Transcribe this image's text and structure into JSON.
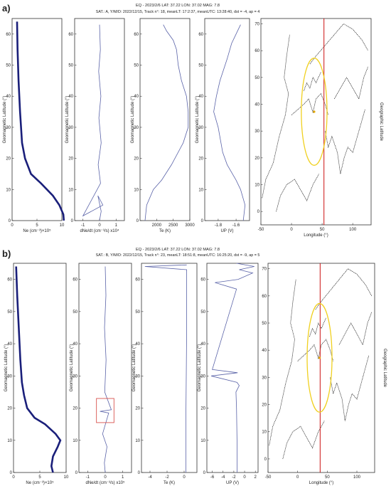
{
  "figure": {
    "colors": {
      "trace": "#1a1f7a",
      "thin_trace": "#5a63a8",
      "map_line": "#111111",
      "meridian": "#cc1111",
      "ellipse": "#f0d020",
      "box": "#d9534f"
    },
    "panels": [
      {
        "id": "a",
        "panel_label": "a)",
        "title": "EQ - 2023/2/6 LAT: 37.22 LON: 37.02 MAG: 7.8",
        "subtitle": "SAT.: A, Y/M/D: 2022/12/15, Track n°: 18, meanLT: 17:2:37, meanUTC: 13:28:40, dst = -4, ap = 4"
      },
      {
        "id": "b",
        "panel_label": "b)",
        "title": "EQ - 2023/2/6 LAT: 37.22 LON: 37.02 MAG: 7.8",
        "subtitle": "SAT.: B, Y/M/D: 2022/12/15, Track n°: 23, meanLT: 18:51:8, meanUTC: 16:25:20, dst = -9, ap = 5"
      }
    ],
    "ylabel_geomag": "Geomagnetic Latitude (°)",
    "ylabel_geo": "Geographic Latitude",
    "map_xlabel": "Longitude (°)"
  },
  "chart_data": [
    {
      "type": "line",
      "panel": "a",
      "subplot": "ne",
      "xlabel": "Ne (cm⁻³)×10⁵",
      "xlim": [
        0,
        10
      ],
      "ylim": [
        0,
        65
      ],
      "xticks": [
        0,
        5,
        10
      ],
      "yticks": [
        0,
        10,
        20,
        30,
        40,
        50,
        60
      ],
      "series": [
        {
          "x": [
            1,
            1.1,
            1.3,
            1.6,
            2.0,
            2.6,
            3.8,
            5.8,
            8.2,
            9.5,
            10.3,
            10.4
          ],
          "y": [
            64,
            55,
            45,
            35,
            25,
            20,
            15,
            12,
            8,
            5,
            2,
            0
          ]
        }
      ]
    },
    {
      "type": "line",
      "panel": "a",
      "subplot": "dne",
      "xlabel": "dNe/dt (cm⁻³/s) x10⁴",
      "xlim": [
        -1.5,
        1.5
      ],
      "ylim": [
        0,
        65
      ],
      "xticks": [
        -1,
        0,
        1
      ],
      "yticks": [
        0,
        10,
        20,
        30,
        40,
        50,
        60
      ],
      "series": [
        {
          "x": [
            0,
            0.05,
            -0.05,
            0.08,
            -0.04,
            0.1,
            -0.08,
            0.06,
            -1.0,
            0.2,
            -0.1,
            0.1,
            0
          ],
          "y": [
            63,
            55,
            48,
            40,
            33,
            25,
            18,
            12,
            1.5,
            5,
            8,
            3,
            0
          ]
        }
      ]
    },
    {
      "type": "line",
      "panel": "a",
      "subplot": "te",
      "xlabel": "Te (K)",
      "xlim": [
        1500,
        3000
      ],
      "ylim": [
        0,
        65
      ],
      "xticks": [
        2000,
        2500,
        3000
      ],
      "yticks": [
        0,
        10,
        20,
        30,
        40,
        50,
        60
      ],
      "series": [
        {
          "x": [
            1650,
            1700,
            1900,
            2150,
            2450,
            2800,
            2950,
            2950,
            2900,
            2750,
            2650,
            2600,
            2500,
            2300,
            2200
          ],
          "y": [
            0,
            5,
            10,
            13,
            18,
            25,
            30,
            35,
            40,
            45,
            50,
            55,
            58,
            61,
            63
          ]
        }
      ]
    },
    {
      "type": "line",
      "panel": "a",
      "subplot": "up",
      "xlabel": "UP (V)",
      "xlim": [
        -1.95,
        -1.45
      ],
      "ylim": [
        0,
        65
      ],
      "xticks": [
        -1.8,
        -1.6
      ],
      "yticks": [
        0,
        10,
        20,
        30,
        40,
        50,
        60
      ],
      "series": [
        {
          "x": [
            -1.52,
            -1.5,
            -1.55,
            -1.6,
            -1.7,
            -1.75,
            -1.8,
            -1.85,
            -1.82,
            -1.78,
            -1.7,
            -1.65,
            -1.6,
            -1.55
          ],
          "y": [
            0,
            5,
            10,
            13,
            18,
            22,
            30,
            35,
            40,
            45,
            52,
            57,
            60,
            63
          ]
        }
      ]
    },
    {
      "type": "scatter",
      "panel": "a",
      "subplot": "map",
      "xlabel": "Longitude (°)",
      "ylabel": "Geographic Latitude",
      "xlim": [
        -50,
        130
      ],
      "ylim": [
        -5,
        72
      ],
      "xticks": [
        -50,
        0,
        50,
        100
      ],
      "yticks": [
        0,
        10,
        20,
        30,
        40,
        50,
        60,
        70
      ],
      "epicenter": {
        "lon": 37.02,
        "lat": 37.22
      },
      "track_lon": 53
    },
    {
      "type": "line",
      "panel": "b",
      "subplot": "ne",
      "xlabel": "Ne (cm⁻³)×10⁵",
      "xlim": [
        0,
        10
      ],
      "ylim": [
        0,
        65
      ],
      "xticks": [
        0,
        5,
        10
      ],
      "yticks": [
        0,
        10,
        20,
        30,
        40,
        50,
        60
      ],
      "series": [
        {
          "x": [
            0.5,
            0.7,
            1.0,
            1.3,
            1.6,
            2.0,
            2.6,
            4.0,
            6.0,
            8.0,
            8.9,
            8.4,
            7.5,
            7.2,
            7.5
          ],
          "y": [
            64,
            55,
            45,
            35,
            28,
            24,
            20,
            17,
            15,
            12,
            10,
            8,
            5,
            2,
            0
          ]
        }
      ]
    },
    {
      "type": "line",
      "panel": "b",
      "subplot": "dne",
      "xlabel": "dNe/dt (cm⁻³/s) x10⁵",
      "xlim": [
        -1.5,
        1.5
      ],
      "ylim": [
        0,
        65
      ],
      "xticks": [
        -1,
        0,
        1
      ],
      "yticks": [
        0,
        10,
        20,
        30,
        40,
        50,
        60
      ],
      "highlight_box": {
        "x": [
          -0.5,
          0.5
        ],
        "y": [
          15.5,
          23
        ]
      },
      "series": [
        {
          "x": [
            0,
            0.04,
            -0.04,
            0.05,
            -0.03,
            0.35,
            -0.3,
            0.2,
            -0.15,
            0.1,
            -0.05,
            0
          ],
          "y": [
            64,
            55,
            45,
            35,
            25,
            19.5,
            19,
            18.5,
            12,
            8,
            3,
            0
          ]
        }
      ]
    },
    {
      "type": "line",
      "panel": "b",
      "subplot": "te",
      "xlabel": "Te (K)",
      "xlim": [
        -5,
        1.5
      ],
      "ylim": [
        0,
        65
      ],
      "xticks": [
        -4,
        -2,
        0
      ],
      "yticks": [
        0,
        10,
        20,
        30,
        40,
        50,
        60
      ],
      "series": [
        {
          "x": [
            0.2,
            0.2,
            0.25,
            0.3,
            0.3,
            -4.6,
            0.3
          ],
          "y": [
            0,
            15,
            30,
            45,
            63,
            64,
            64.5
          ]
        }
      ]
    },
    {
      "type": "line",
      "panel": "b",
      "subplot": "up",
      "xlabel": "UP (V)",
      "xlim": [
        -7,
        2.5
      ],
      "ylim": [
        0,
        65
      ],
      "xticks": [
        -6,
        -4,
        -2,
        0,
        2
      ],
      "yticks": [
        0,
        10,
        20,
        30,
        40,
        50,
        60
      ],
      "series": [
        {
          "x": [
            -1.4,
            -1.4,
            -1.5,
            -1.6,
            -1.0,
            -1.4,
            -6.2,
            -1.3,
            -6.0,
            -1.5,
            -5.5,
            -1.2,
            1.5,
            -1.0,
            1.8,
            -1.5
          ],
          "y": [
            0,
            10,
            20,
            25,
            27,
            28,
            30,
            31,
            32,
            57,
            59,
            60,
            62,
            63,
            64,
            65
          ]
        }
      ]
    },
    {
      "type": "scatter",
      "panel": "b",
      "subplot": "map",
      "xlabel": "Longitude (°)",
      "ylabel": "Geographic Latitude",
      "xlim": [
        -50,
        130
      ],
      "ylim": [
        -5,
        72
      ],
      "xticks": [
        -50,
        0,
        50,
        100
      ],
      "yticks": [
        0,
        10,
        20,
        30,
        40,
        50,
        60,
        70
      ],
      "epicenter": {
        "lon": 37.02,
        "lat": 37.22
      },
      "track_lon": 38
    }
  ]
}
